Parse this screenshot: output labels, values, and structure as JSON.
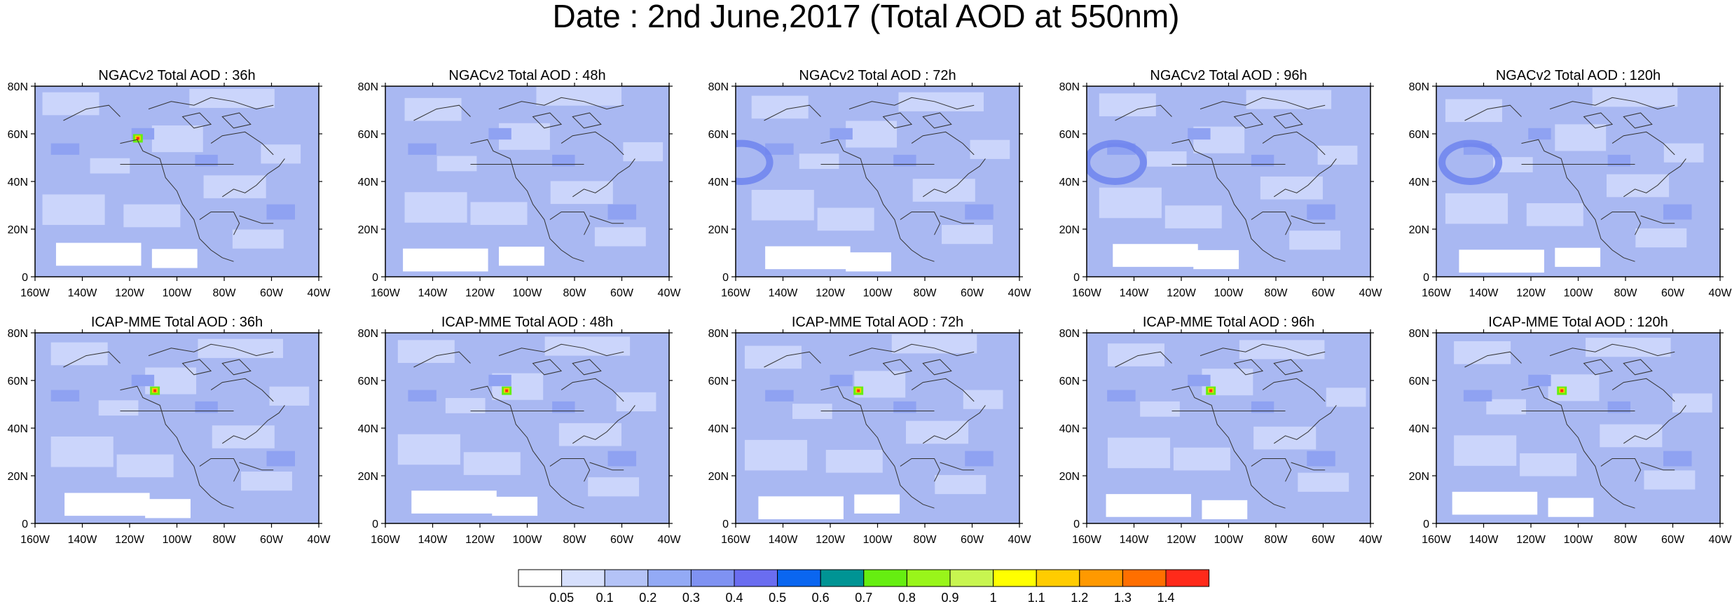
{
  "title": "Date : 2nd June,2017 (Total AOD at 550nm)",
  "colors": {
    "base": "#a9b8f2",
    "light": "#cbd5fb",
    "white": "#ffffff",
    "mid": "#8fa2f2",
    "dark": "#6f84ee",
    "coast": "#333333"
  },
  "lon_ticks": [
    "160W",
    "140W",
    "120W",
    "100W",
    "80W",
    "60W",
    "40W"
  ],
  "lat_ticks": [
    "0",
    "20N",
    "40N",
    "60N",
    "80N"
  ],
  "rows": [
    {
      "model": "NGACv2",
      "panels": [
        {
          "title": "NGACv2 Total AOD : 36h"
        },
        {
          "title": "NGACv2 Total AOD : 48h"
        },
        {
          "title": "NGACv2 Total AOD : 72h"
        },
        {
          "title": "NGACv2 Total AOD : 96h"
        },
        {
          "title": "NGACv2 Total AOD : 120h"
        }
      ]
    },
    {
      "model": "ICAP-MME",
      "panels": [
        {
          "title": "ICAP-MME Total AOD : 36h"
        },
        {
          "title": "ICAP-MME Total AOD : 48h"
        },
        {
          "title": "ICAP-MME Total AOD : 72h"
        },
        {
          "title": "ICAP-MME Total AOD : 96h"
        },
        {
          "title": "ICAP-MME Total AOD : 120h"
        }
      ]
    }
  ],
  "colorbar": {
    "labels": [
      "0.05",
      "0.1",
      "0.2",
      "0.3",
      "0.4",
      "0.5",
      "0.6",
      "0.7",
      "0.8",
      "0.9",
      "1",
      "1.1",
      "1.2",
      "1.3",
      "1.4"
    ],
    "colors": [
      "#ffffff",
      "#d6dffc",
      "#b4c3f7",
      "#93aaf5",
      "#7f92f2",
      "#6a6df0",
      "#0a66f0",
      "#009494",
      "#66ee11",
      "#99f51a",
      "#c8f550",
      "#ffff00",
      "#ffcc00",
      "#ff9900",
      "#ff6f00",
      "#ff2a1a"
    ]
  }
}
